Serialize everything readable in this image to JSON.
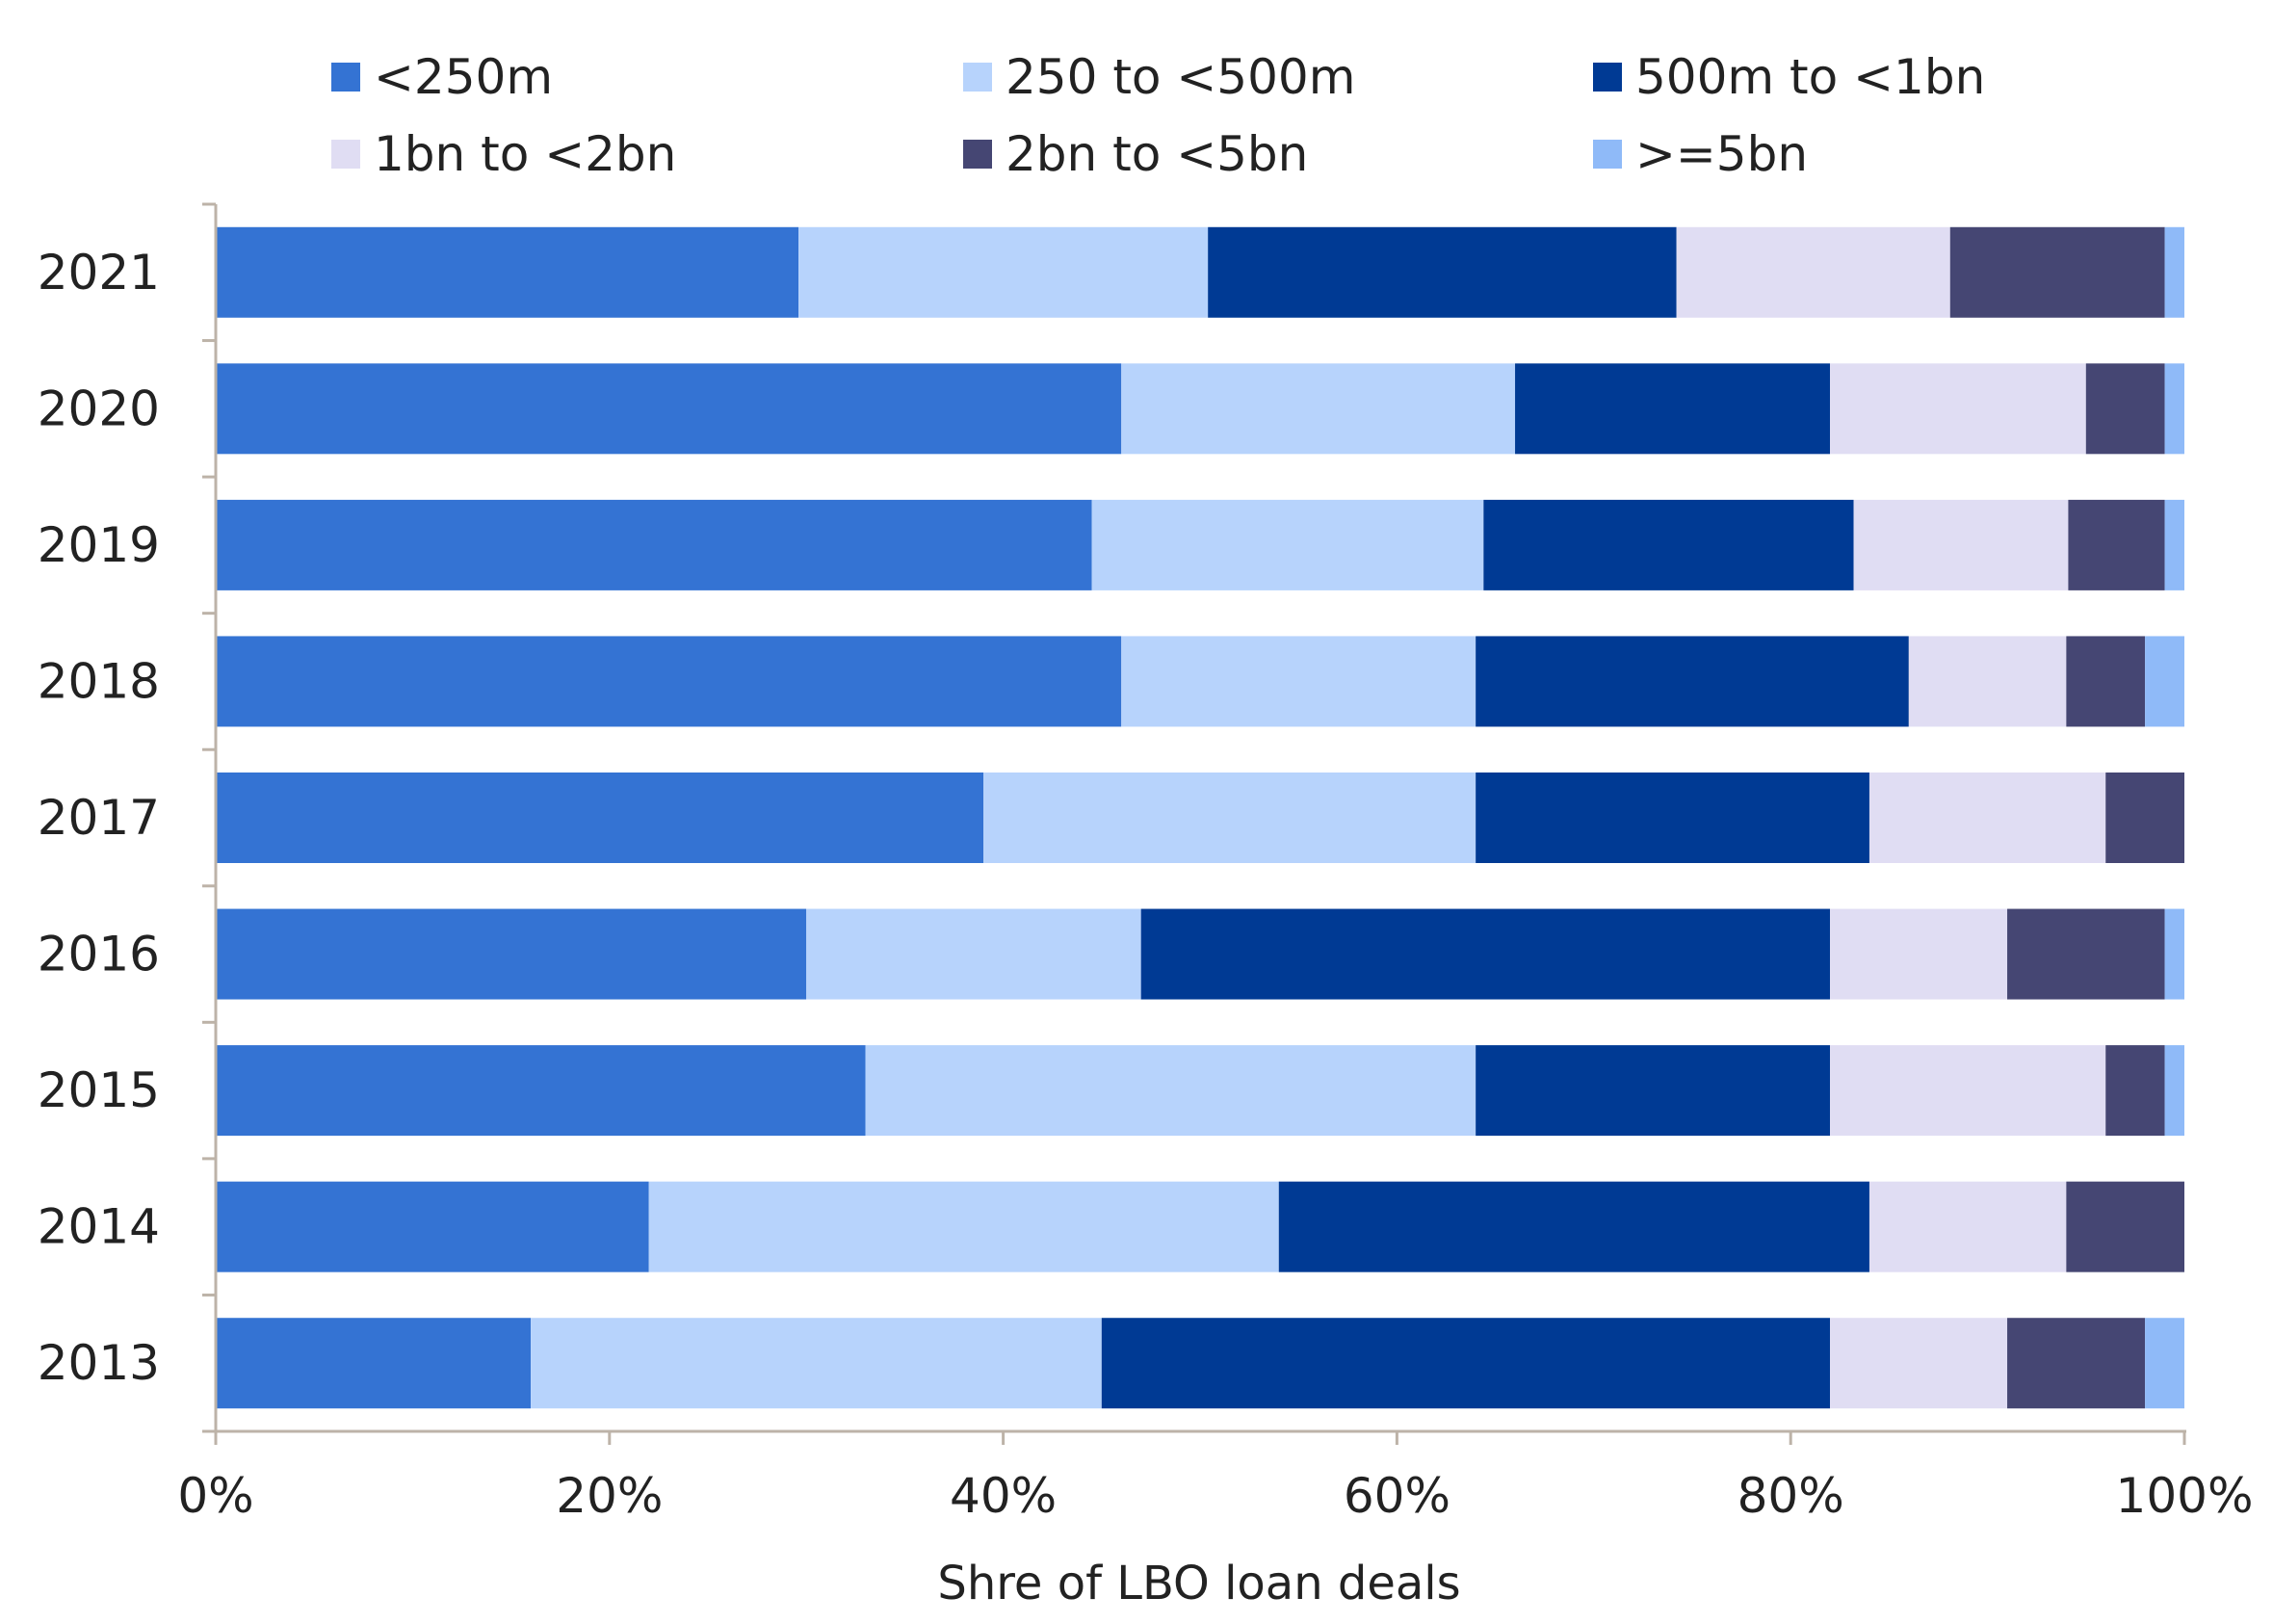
{
  "chart_data": {
    "type": "bar",
    "orientation": "horizontal",
    "stacked": true,
    "title": "",
    "xlabel": "Shre of LBO loan deals",
    "ylabel": "",
    "xlim": [
      0,
      100
    ],
    "x_ticks": [
      "0%",
      "20%",
      "40%",
      "60%",
      "80%",
      "100%"
    ],
    "grid": false,
    "legend_position": "top",
    "categories": [
      "2021",
      "2020",
      "2019",
      "2018",
      "2017",
      "2016",
      "2015",
      "2014",
      "2013"
    ],
    "series": [
      {
        "name": "<250m",
        "color": "#3473D3",
        "values": [
          29.6,
          46,
          44.5,
          46,
          39,
          30,
          33,
          22,
          16
        ]
      },
      {
        "name": "250 to <500m",
        "color": "#B7D3FC",
        "values": [
          20.8,
          20,
          19.9,
          18,
          25,
          17,
          31,
          32,
          29
        ]
      },
      {
        "name": "500m to <1bn",
        "color": "#003A94",
        "values": [
          23.8,
          16,
          18.8,
          22,
          20,
          35,
          18,
          30,
          37
        ]
      },
      {
        "name": "1bn to <2bn",
        "color": "#E0DDF3",
        "values": [
          13.9,
          13,
          10.9,
          8,
          12,
          9,
          14,
          10,
          9
        ]
      },
      {
        "name": "2bn to <5bn",
        "color": "#454673",
        "values": [
          10.9,
          4,
          4.9,
          4,
          4,
          8,
          3,
          6,
          7
        ]
      },
      {
        "name": ">=5bn",
        "color": "#8FBAF8",
        "values": [
          1,
          1,
          1,
          2,
          0,
          1,
          1,
          0,
          2
        ]
      }
    ]
  }
}
